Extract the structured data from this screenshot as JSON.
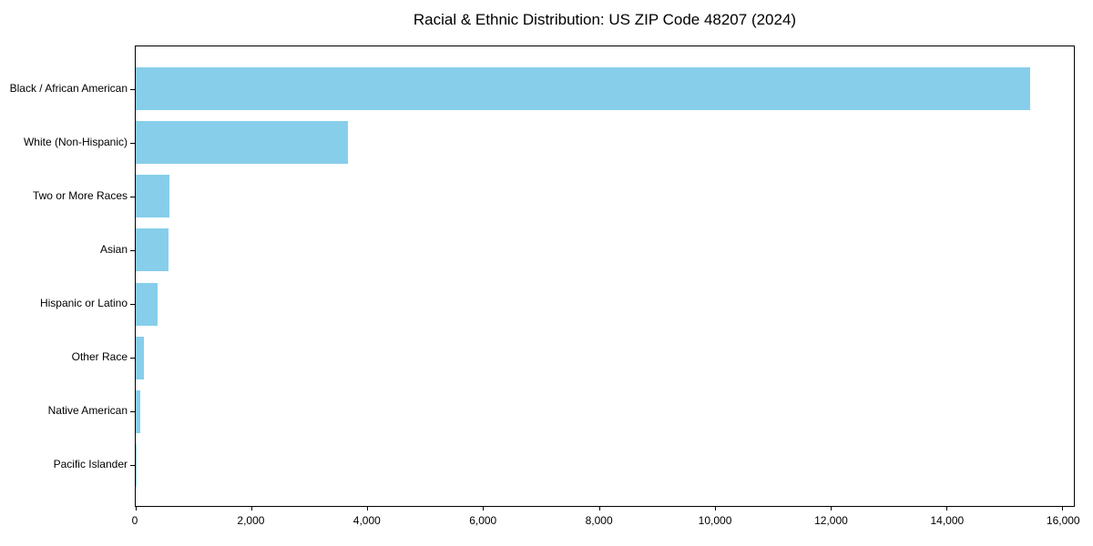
{
  "colors": {
    "background": "#ffffff",
    "axis": "#000000",
    "text": "#000000",
    "bar": "#87CEEB"
  },
  "chart_data": {
    "type": "bar",
    "orientation": "horizontal",
    "title": "Racial & Ethnic Distribution: US ZIP Code 48207 (2024)",
    "xlabel": "",
    "ylabel": "",
    "categories": [
      "Black / African American",
      "White (Non-Hispanic)",
      "Two or More Races",
      "Asian",
      "Hispanic or Latino",
      "Other Race",
      "Native American",
      "Pacific Islander"
    ],
    "values": [
      15440,
      3670,
      580,
      570,
      380,
      140,
      80,
      10
    ],
    "bar_color": "#87CEEB",
    "xlim": [
      0,
      16200
    ],
    "xticks": [
      0,
      2000,
      4000,
      6000,
      8000,
      10000,
      12000,
      14000,
      16000
    ],
    "xtick_labels": [
      "0",
      "2,000",
      "4,000",
      "6,000",
      "8,000",
      "10,000",
      "12,000",
      "14,000",
      "16,000"
    ],
    "grid": false,
    "legend": null
  }
}
